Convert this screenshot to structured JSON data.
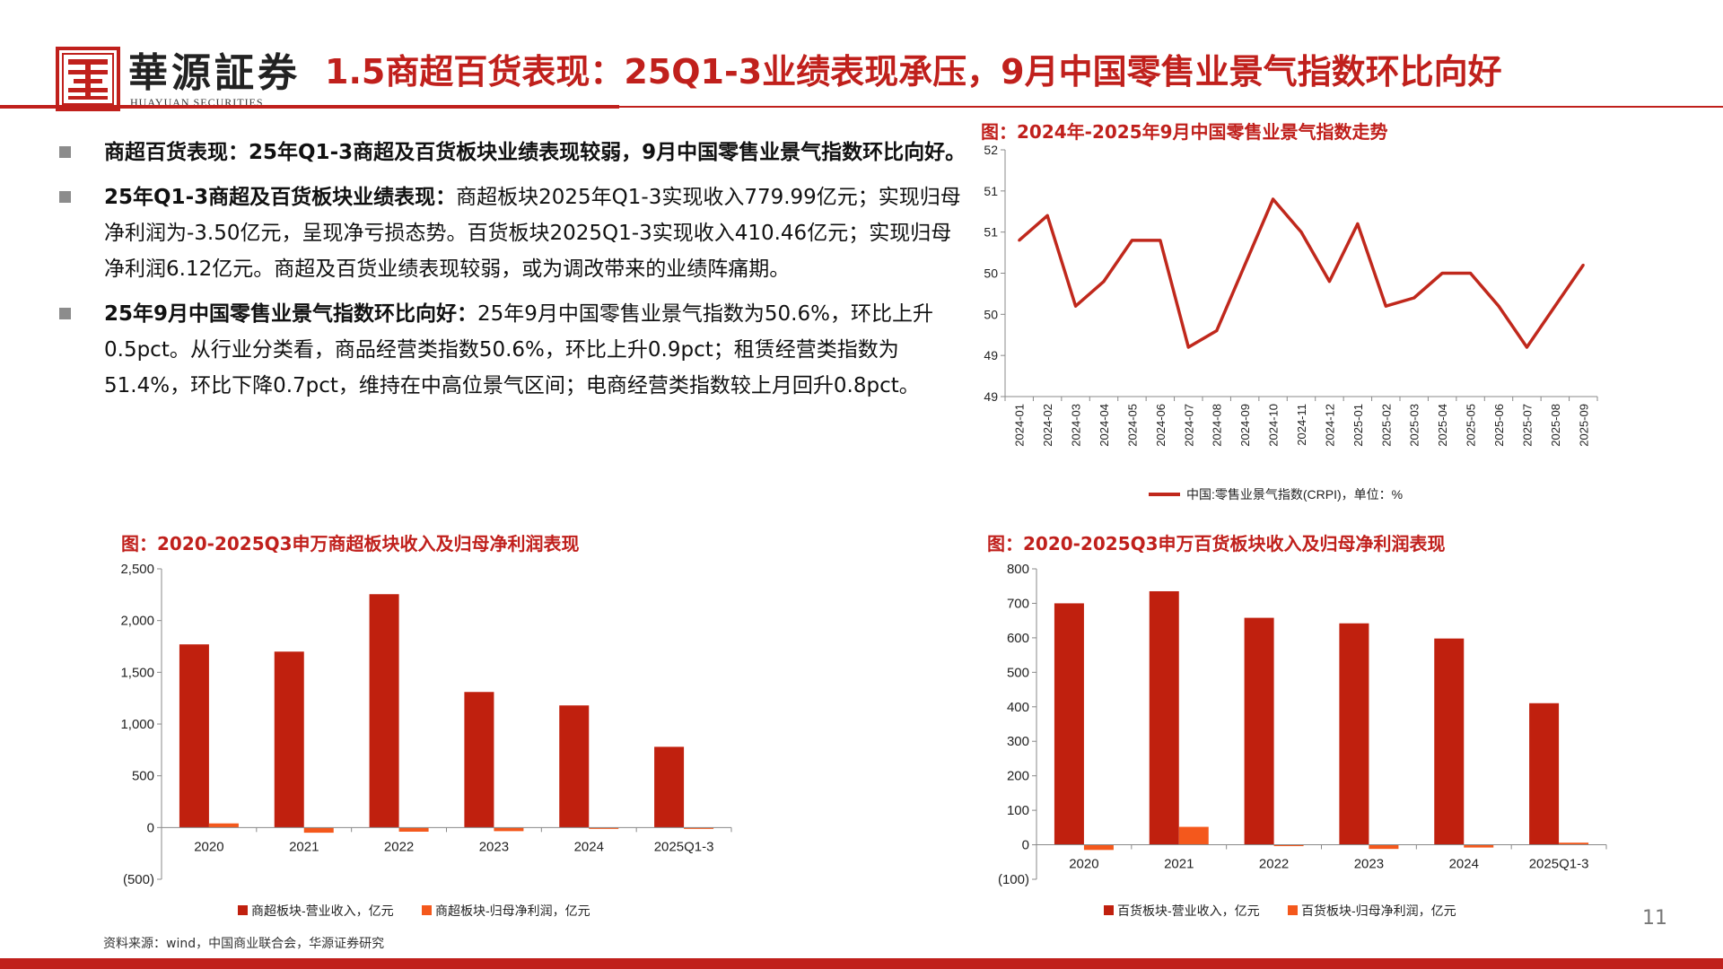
{
  "header": {
    "brand_cn": "華源証券",
    "brand_en": "HUAYUAN SECURITIES",
    "title": "1.5商超百货表现：25Q1-3业绩表现承压，9月中国零售业景气指数环比向好"
  },
  "bullets": [
    {
      "lead": "商超百货表现：25年Q1-3商超及百货板块业绩表现较弱，9月中国零售业景气指数环比向好。",
      "body": ""
    },
    {
      "lead": "25年Q1-3商超及百货板块业绩表现：",
      "body": "商超板块2025年Q1-3实现收入779.99亿元；实现归母净利润为-3.50亿元，呈现净亏损态势。百货板块2025Q1-3实现收入410.46亿元；实现归母净利润6.12亿元。商超及百货业绩表现较弱，或为调改带来的业绩阵痛期。"
    },
    {
      "lead": "25年9月中国零售业景气指数环比向好：",
      "body": "25年9月中国零售业景气指数为50.6%，环比上升0.5pct。从行业分类看，商品经营类指数50.6%，环比上升0.9pct；租赁经营类指数为51.4%，环比下降0.7pct，维持在中高位景气区间；电商经营类指数较上月回升0.8pct。"
    }
  ],
  "colors": {
    "accent": "#c0201c",
    "bar_revenue": "#c0200e",
    "bar_profit": "#f4581c",
    "line": "#c0281c"
  },
  "chart_data": [
    {
      "type": "line",
      "title": "图：2024年-2025年9月中国零售业景气指数走势",
      "x": [
        "2024-01",
        "2024-02",
        "2024-03",
        "2024-04",
        "2024-05",
        "2024-06",
        "2024-07",
        "2024-08",
        "2024-09",
        "2024-10",
        "2024-11",
        "2024-12",
        "2025-01",
        "2025-02",
        "2025-03",
        "2025-04",
        "2025-05",
        "2025-06",
        "2025-07",
        "2025-08",
        "2025-09"
      ],
      "series": [
        {
          "name": "中国:零售业景气指数(CRPI)，单位：%",
          "values": [
            50.9,
            51.2,
            50.1,
            50.4,
            50.9,
            50.9,
            49.6,
            49.8,
            50.6,
            51.4,
            51.0,
            50.4,
            51.1,
            50.1,
            50.2,
            50.5,
            50.5,
            50.1,
            49.6,
            50.1,
            50.6
          ]
        }
      ],
      "ylim": [
        49.0,
        52.0
      ],
      "yticks": [
        52.0,
        51.5,
        51.0,
        50.5,
        50.0,
        49.5,
        49.0
      ],
      "ytick_labels": [
        "52",
        "51",
        "51",
        "50",
        "50",
        "49",
        "49"
      ],
      "legend": "bottom"
    },
    {
      "type": "bar",
      "title": "图：2020-2025Q3申万商超板块收入及归母净利润表现",
      "categories": [
        "2020",
        "2021",
        "2022",
        "2023",
        "2024",
        "2025Q1-3"
      ],
      "series": [
        {
          "name": "商超板块-营业收入，亿元",
          "values": [
            1770,
            1700,
            2255,
            1310,
            1180,
            779.99
          ]
        },
        {
          "name": "商超板块-归母净利润，亿元",
          "values": [
            40,
            -50,
            -40,
            -35,
            -5,
            -3.5
          ]
        }
      ],
      "ylim": [
        -500,
        2500
      ],
      "yticks": [
        2500,
        2000,
        1500,
        1000,
        500,
        0,
        -500
      ],
      "ytick_labels": [
        "2,500",
        "2,000",
        "1,500",
        "1,000",
        "500",
        "0",
        "(500)"
      ],
      "legend": "bottom"
    },
    {
      "type": "bar",
      "title": "图：2020-2025Q3申万百货板块收入及归母净利润表现",
      "categories": [
        "2020",
        "2021",
        "2022",
        "2023",
        "2024",
        "2025Q1-3"
      ],
      "series": [
        {
          "name": "百货板块-营业收入，亿元",
          "values": [
            700,
            735,
            658,
            642,
            598,
            410.46
          ]
        },
        {
          "name": "百货板块-归母净利润，亿元",
          "values": [
            -15,
            52,
            -2,
            -12,
            -8,
            6.12
          ]
        }
      ],
      "ylim": [
        -100,
        800
      ],
      "yticks": [
        800,
        700,
        600,
        500,
        400,
        300,
        200,
        100,
        0,
        -100
      ],
      "ytick_labels": [
        "800",
        "700",
        "600",
        "500",
        "400",
        "300",
        "200",
        "100",
        "0",
        "(100)"
      ],
      "legend": "bottom"
    }
  ],
  "footer": {
    "source": "资料来源：wind，中国商业联合会，华源证券研究",
    "page": "11"
  }
}
